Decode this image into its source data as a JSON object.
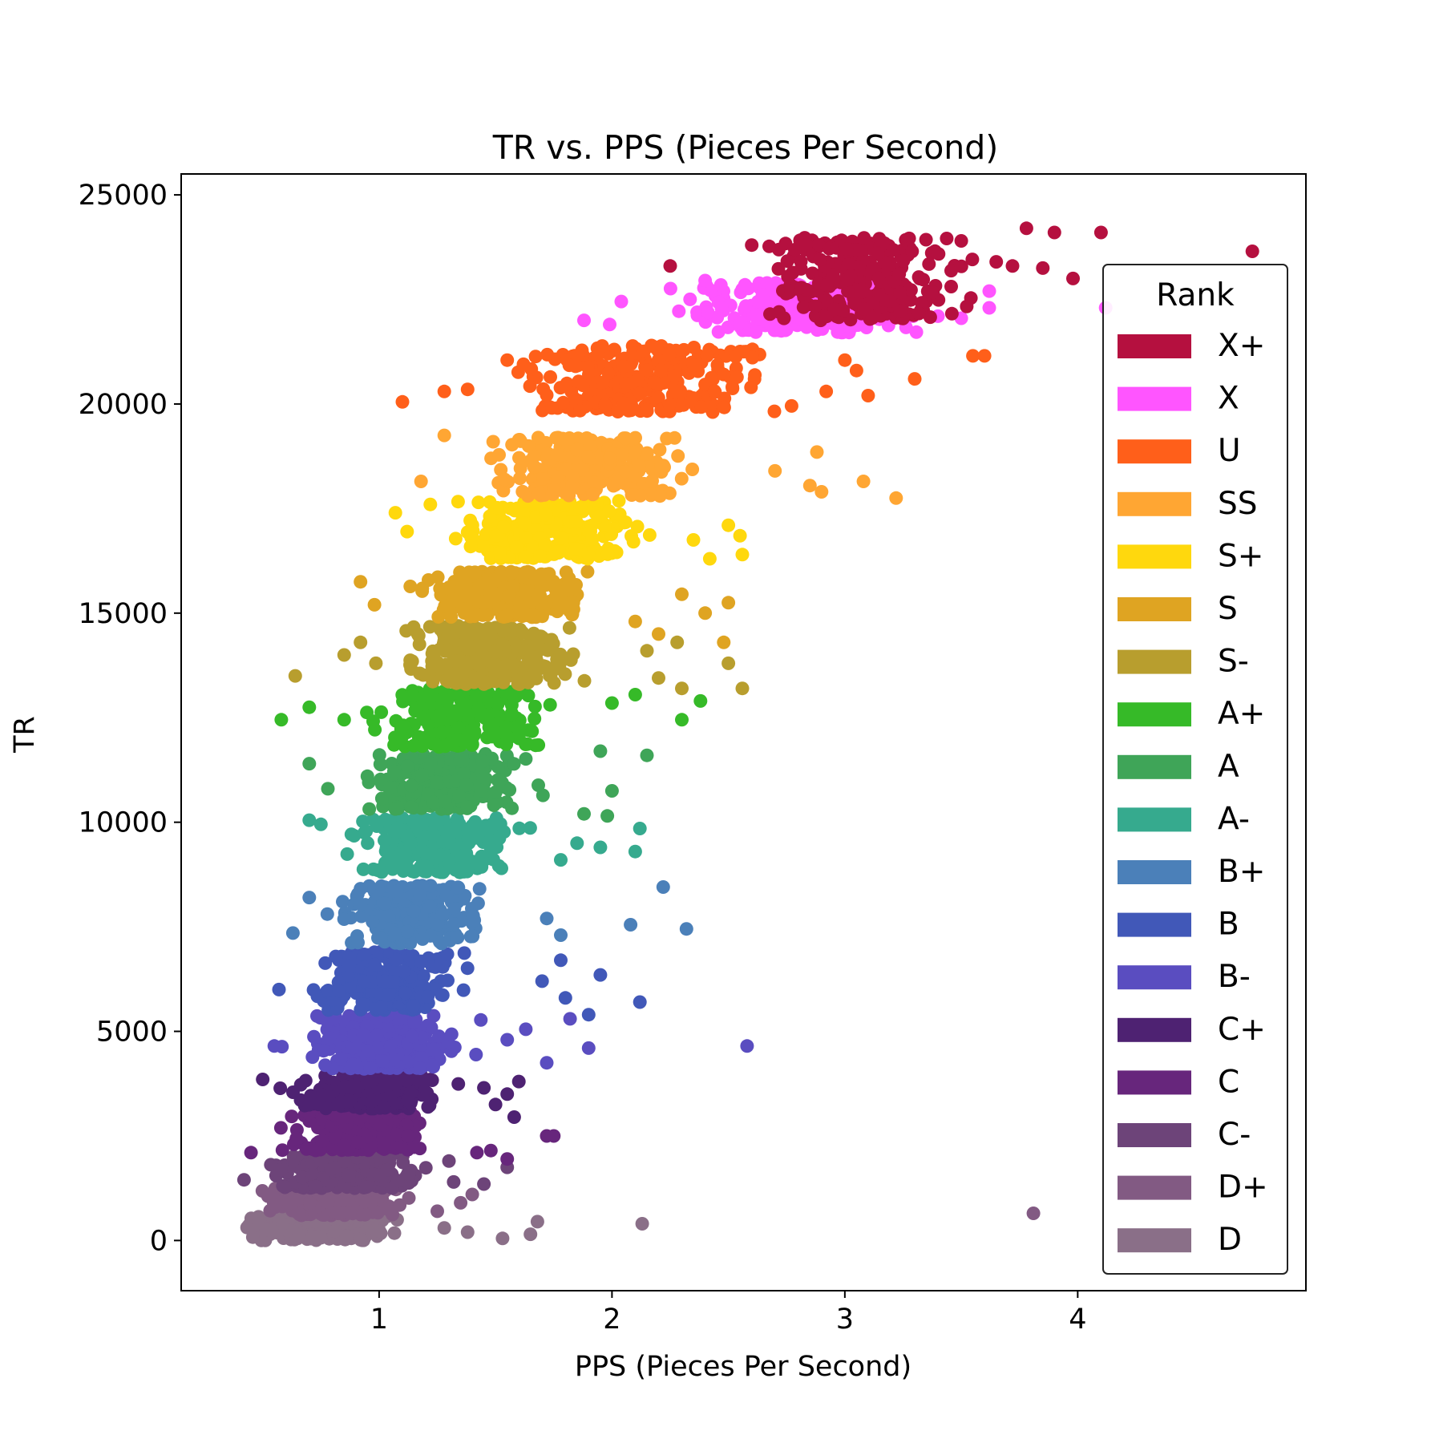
{
  "chart_data": {
    "type": "scatter",
    "title": "TR vs. PPS (Pieces Per Second)",
    "xlabel": "PPS (Pieces Per Second)",
    "ylabel": "TR",
    "xlim": [
      0.15,
      4.98
    ],
    "ylim": [
      -1200,
      25500
    ],
    "xticks": [
      1,
      2,
      3,
      4
    ],
    "yticks": [
      0,
      5000,
      10000,
      15000,
      20000,
      25000
    ],
    "grid": false,
    "legend": {
      "title": "Rank",
      "placement": "right",
      "entries": [
        "X+",
        "X",
        "U",
        "SS",
        "S+",
        "S",
        "S-",
        "A+",
        "A",
        "A-",
        "B+",
        "B",
        "B-",
        "C+",
        "C",
        "C-",
        "D+",
        "D"
      ]
    },
    "series": [
      {
        "name": "X+",
        "color": "#B5103F",
        "band": {
          "tr_min": 22000,
          "tr_max": 24000,
          "x_start": 2.55,
          "x_end": 3.65
        },
        "outliers": [
          [
            2.25,
            23300
          ],
          [
            2.6,
            23800
          ],
          [
            3.5,
            23900
          ],
          [
            3.78,
            24200
          ],
          [
            3.9,
            24100
          ],
          [
            4.1,
            24100
          ],
          [
            4.75,
            23650
          ],
          [
            3.98,
            23000
          ],
          [
            3.72,
            23300
          ],
          [
            3.85,
            23250
          ],
          [
            3.65,
            23400
          ]
        ]
      },
      {
        "name": "X",
        "color": "#FF55FF",
        "band": {
          "tr_min": 21700,
          "tr_max": 22900,
          "x_start": 2.1,
          "x_end": 3.55
        },
        "outliers": [
          [
            1.88,
            22000
          ],
          [
            1.99,
            21900
          ],
          [
            2.04,
            22450
          ],
          [
            2.4,
            22950
          ],
          [
            4.12,
            22300
          ],
          [
            3.62,
            22300
          ],
          [
            3.5,
            22050
          ],
          [
            3.62,
            22700
          ],
          [
            3.4,
            22100
          ]
        ]
      },
      {
        "name": "U",
        "color": "#FF5F1A",
        "band": {
          "tr_min": 19800,
          "tr_max": 21400,
          "x_start": 1.45,
          "x_end": 2.85
        },
        "outliers": [
          [
            1.1,
            20050
          ],
          [
            1.28,
            20300
          ],
          [
            1.38,
            20350
          ],
          [
            1.55,
            21050
          ],
          [
            1.62,
            20950
          ],
          [
            2.05,
            20900
          ],
          [
            3.0,
            21050
          ],
          [
            3.05,
            20800
          ],
          [
            3.3,
            20600
          ],
          [
            3.55,
            21150
          ],
          [
            3.6,
            21150
          ],
          [
            3.1,
            20200
          ],
          [
            2.92,
            20300
          ]
        ]
      },
      {
        "name": "SS",
        "color": "#FFA633",
        "band": {
          "tr_min": 17800,
          "tr_max": 19200,
          "x_start": 1.35,
          "x_end": 2.45
        },
        "outliers": [
          [
            1.18,
            18150
          ],
          [
            1.28,
            19250
          ],
          [
            2.7,
            18400
          ],
          [
            2.85,
            18050
          ],
          [
            2.9,
            17900
          ],
          [
            3.08,
            18150
          ],
          [
            3.22,
            17750
          ],
          [
            2.88,
            18850
          ]
        ]
      },
      {
        "name": "S+",
        "color": "#FFD80D",
        "band": {
          "tr_min": 16300,
          "tr_max": 17700,
          "x_start": 1.22,
          "x_end": 2.25
        },
        "outliers": [
          [
            1.07,
            17400
          ],
          [
            1.12,
            16950
          ],
          [
            1.22,
            17600
          ],
          [
            2.5,
            17100
          ],
          [
            2.55,
            16850
          ],
          [
            2.56,
            16400
          ],
          [
            2.42,
            16300
          ],
          [
            2.35,
            16750
          ]
        ]
      },
      {
        "name": "S",
        "color": "#DFA422",
        "band": {
          "tr_min": 14900,
          "tr_max": 16000,
          "x_start": 1.04,
          "x_end": 2.05
        },
        "outliers": [
          [
            0.92,
            15750
          ],
          [
            0.98,
            15200
          ],
          [
            2.3,
            15450
          ],
          [
            2.4,
            15000
          ],
          [
            2.5,
            15250
          ],
          [
            2.48,
            14300
          ],
          [
            2.1,
            14800
          ],
          [
            2.2,
            14500
          ]
        ]
      },
      {
        "name": "S-",
        "color": "#B89E2E",
        "band": {
          "tr_min": 13300,
          "tr_max": 14700,
          "x_start": 0.96,
          "x_end": 1.95
        },
        "outliers": [
          [
            0.64,
            13500
          ],
          [
            0.85,
            14000
          ],
          [
            0.92,
            14300
          ],
          [
            2.15,
            14100
          ],
          [
            2.2,
            13450
          ],
          [
            2.3,
            13200
          ],
          [
            2.5,
            13800
          ],
          [
            2.56,
            13200
          ],
          [
            2.28,
            14300
          ]
        ]
      },
      {
        "name": "A+",
        "color": "#36BA28",
        "band": {
          "tr_min": 11800,
          "tr_max": 13200,
          "x_start": 0.9,
          "x_end": 1.85
        },
        "outliers": [
          [
            0.58,
            12450
          ],
          [
            0.7,
            12750
          ],
          [
            0.85,
            12450
          ],
          [
            2.0,
            12850
          ],
          [
            2.1,
            13050
          ],
          [
            2.3,
            12450
          ],
          [
            2.38,
            12900
          ]
        ]
      },
      {
        "name": "A",
        "color": "#3FA558",
        "band": {
          "tr_min": 10300,
          "tr_max": 11700,
          "x_start": 0.8,
          "x_end": 1.75
        },
        "outliers": [
          [
            0.7,
            11400
          ],
          [
            0.78,
            10800
          ],
          [
            1.95,
            11700
          ],
          [
            2.0,
            10750
          ],
          [
            2.15,
            11600
          ],
          [
            1.88,
            10200
          ],
          [
            1.98,
            10150
          ]
        ]
      },
      {
        "name": "A-",
        "color": "#36AA8E",
        "band": {
          "tr_min": 8800,
          "tr_max": 10100,
          "x_start": 0.78,
          "x_end": 1.68
        },
        "outliers": [
          [
            0.7,
            10050
          ],
          [
            0.75,
            9950
          ],
          [
            1.95,
            9400
          ],
          [
            2.1,
            9300
          ],
          [
            2.12,
            9850
          ],
          [
            1.85,
            9500
          ],
          [
            1.78,
            9100
          ]
        ]
      },
      {
        "name": "B+",
        "color": "#4B80B9",
        "band": {
          "tr_min": 7100,
          "tr_max": 8500,
          "x_start": 0.74,
          "x_end": 1.55
        },
        "outliers": [
          [
            0.7,
            8200
          ],
          [
            0.63,
            7350
          ],
          [
            2.08,
            7550
          ],
          [
            2.22,
            8450
          ],
          [
            2.32,
            7450
          ],
          [
            1.78,
            7300
          ],
          [
            1.72,
            7700
          ]
        ]
      },
      {
        "name": "B",
        "color": "#4158B8",
        "band": {
          "tr_min": 5500,
          "tr_max": 6900,
          "x_start": 0.62,
          "x_end": 1.45
        },
        "outliers": [
          [
            0.57,
            6000
          ],
          [
            1.78,
            6700
          ],
          [
            1.95,
            6350
          ],
          [
            2.12,
            5700
          ],
          [
            1.9,
            5400
          ],
          [
            1.8,
            5800
          ],
          [
            1.7,
            6200
          ]
        ]
      },
      {
        "name": "B-",
        "color": "#5A4DC0",
        "band": {
          "tr_min": 4100,
          "tr_max": 5400,
          "x_start": 0.6,
          "x_end": 1.45
        },
        "outliers": [
          [
            0.55,
            4650
          ],
          [
            2.58,
            4650
          ],
          [
            1.9,
            4600
          ],
          [
            1.72,
            4250
          ],
          [
            1.82,
            5300
          ],
          [
            1.63,
            5050
          ],
          [
            1.55,
            4800
          ]
        ]
      },
      {
        "name": "C+",
        "color": "#4E2272",
        "band": {
          "tr_min": 3150,
          "tr_max": 3950,
          "x_start": 0.57,
          "x_end": 1.35
        },
        "outliers": [
          [
            0.5,
            3850
          ],
          [
            1.55,
            3500
          ],
          [
            1.58,
            2950
          ],
          [
            1.5,
            3250
          ],
          [
            1.45,
            3650
          ],
          [
            1.6,
            3800
          ]
        ]
      },
      {
        "name": "C",
        "color": "#67267C",
        "band": {
          "tr_min": 2150,
          "tr_max": 3100,
          "x_start": 0.52,
          "x_end": 1.3
        },
        "outliers": [
          [
            0.45,
            2100
          ],
          [
            1.72,
            2500
          ],
          [
            1.75,
            2500
          ],
          [
            1.42,
            2100
          ],
          [
            1.48,
            2150
          ],
          [
            1.55,
            1950
          ]
        ]
      },
      {
        "name": "C-",
        "color": "#6D4479",
        "band": {
          "tr_min": 1250,
          "tr_max": 2050,
          "x_start": 0.45,
          "x_end": 1.25
        },
        "outliers": [
          [
            0.42,
            1450
          ],
          [
            1.55,
            1750
          ],
          [
            1.45,
            1350
          ],
          [
            1.32,
            1400
          ],
          [
            1.3,
            1900
          ]
        ]
      },
      {
        "name": "D+",
        "color": "#825A83",
        "band": {
          "tr_min": 600,
          "tr_max": 1250,
          "x_start": 0.38,
          "x_end": 1.2
        },
        "outliers": [
          [
            3.81,
            650
          ],
          [
            1.35,
            900
          ],
          [
            1.25,
            700
          ],
          [
            1.4,
            1100
          ]
        ]
      },
      {
        "name": "D",
        "color": "#8A6F88",
        "band": {
          "tr_min": 0,
          "tr_max": 600,
          "x_start": 0.35,
          "x_end": 1.15
        },
        "outliers": [
          [
            1.53,
            50
          ],
          [
            1.38,
            200
          ],
          [
            1.65,
            150
          ],
          [
            1.68,
            450
          ],
          [
            2.13,
            400
          ],
          [
            1.28,
            300
          ]
        ]
      }
    ]
  }
}
